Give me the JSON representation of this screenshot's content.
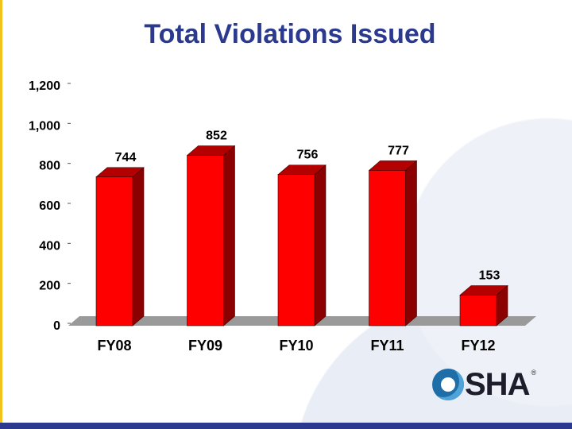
{
  "slide": {
    "title": "Total Violations Issued",
    "logo_text": "SHA",
    "logo_mark": "®",
    "colors": {
      "title": "#2b3a8f",
      "bar_front": "#ff0000",
      "bar_side": "#8b0000",
      "bar_top": "#b30000",
      "floor": "#9a9a9a",
      "accent_left": "#f3c21b",
      "accent_bottom": "#2b3a8f"
    }
  },
  "chart_data": {
    "type": "bar",
    "title": "Total Violations Issued",
    "categories": [
      "FY08",
      "FY09",
      "FY10",
      "FY11",
      "FY12"
    ],
    "values": [
      744,
      852,
      756,
      777,
      153
    ],
    "data_labels": [
      "744",
      "852",
      "756",
      "777",
      "153"
    ],
    "ylim": [
      0,
      1200
    ],
    "yticks": [
      0,
      200,
      400,
      600,
      800,
      1000,
      1200
    ],
    "ytick_labels": [
      "0",
      "200",
      "400",
      "600",
      "800",
      "1,000",
      "1,200"
    ],
    "xlabel": "",
    "ylabel": "",
    "grid": false,
    "legend": "none",
    "style": "3d"
  }
}
